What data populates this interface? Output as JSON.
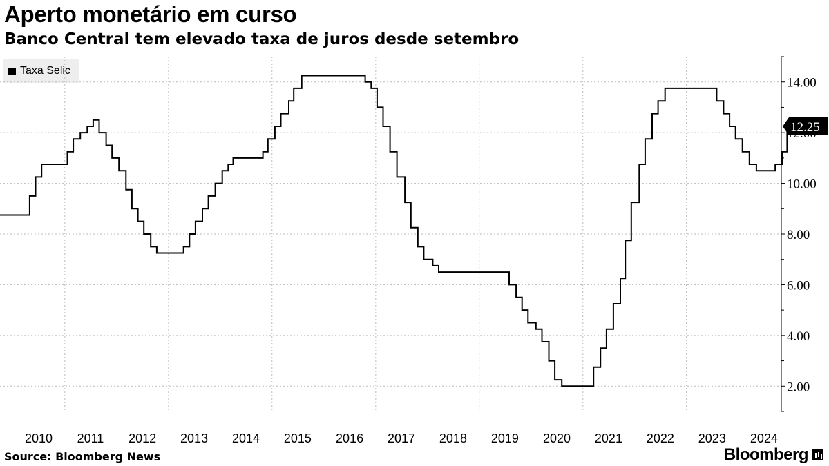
{
  "header": {
    "title": "Aperto monetário em curso",
    "subtitle": "Banco Central tem elevado taxa de juros desde setembro"
  },
  "legend": {
    "label": "Taxa Selic"
  },
  "footer": {
    "source": "Source: Bloomberg News",
    "brand": "Bloomberg"
  },
  "last_value_label": "12.25",
  "colors": {
    "line": "#000000",
    "grid": "#bbbbbb",
    "legend_bg": "#eeeeee",
    "marker_bg": "#000000",
    "marker_text": "#ffffff"
  },
  "chart_data": {
    "type": "line",
    "step": true,
    "title": "Aperto monetário em curso",
    "subtitle": "Banco Central tem elevado taxa de juros desde setembro",
    "xlabel": "",
    "ylabel": "",
    "xlim": [
      "2009-10-01",
      "2024-10-31"
    ],
    "ylim": [
      1,
      15
    ],
    "y_ticks": [
      "2.00",
      "4.00",
      "6.00",
      "8.00",
      "10.00",
      "12.00",
      "14.00"
    ],
    "x_ticks": [
      "2010",
      "2011",
      "2012",
      "2013",
      "2014",
      "2015",
      "2016",
      "2017",
      "2018",
      "2019",
      "2020",
      "2021",
      "2022",
      "2023",
      "2024"
    ],
    "grid": true,
    "legend_position": "top-left",
    "series": [
      {
        "name": "Taxa Selic",
        "points": [
          [
            "2009-10-01",
            8.75
          ],
          [
            "2010-04-28",
            9.5
          ],
          [
            "2010-06-09",
            10.25
          ],
          [
            "2010-07-21",
            10.75
          ],
          [
            "2011-01-19",
            11.25
          ],
          [
            "2011-03-02",
            11.75
          ],
          [
            "2011-04-20",
            12.0
          ],
          [
            "2011-06-08",
            12.25
          ],
          [
            "2011-07-20",
            12.5
          ],
          [
            "2011-08-31",
            12.0
          ],
          [
            "2011-10-19",
            11.5
          ],
          [
            "2011-11-30",
            11.0
          ],
          [
            "2012-01-18",
            10.5
          ],
          [
            "2012-03-07",
            9.75
          ],
          [
            "2012-04-18",
            9.0
          ],
          [
            "2012-05-30",
            8.5
          ],
          [
            "2012-07-11",
            8.0
          ],
          [
            "2012-08-29",
            7.5
          ],
          [
            "2012-10-10",
            7.25
          ],
          [
            "2013-04-17",
            7.5
          ],
          [
            "2013-05-29",
            8.0
          ],
          [
            "2013-07-10",
            8.5
          ],
          [
            "2013-08-28",
            9.0
          ],
          [
            "2013-10-09",
            9.5
          ],
          [
            "2013-11-27",
            10.0
          ],
          [
            "2014-01-15",
            10.5
          ],
          [
            "2014-02-26",
            10.75
          ],
          [
            "2014-04-02",
            11.0
          ],
          [
            "2014-10-29",
            11.25
          ],
          [
            "2014-12-03",
            11.75
          ],
          [
            "2015-01-21",
            12.25
          ],
          [
            "2015-03-04",
            12.75
          ],
          [
            "2015-04-29",
            13.25
          ],
          [
            "2015-06-03",
            13.75
          ],
          [
            "2015-07-29",
            14.25
          ],
          [
            "2016-10-19",
            14.0
          ],
          [
            "2016-11-30",
            13.75
          ],
          [
            "2017-01-11",
            13.0
          ],
          [
            "2017-02-22",
            12.25
          ],
          [
            "2017-04-12",
            11.25
          ],
          [
            "2017-05-31",
            10.25
          ],
          [
            "2017-07-26",
            9.25
          ],
          [
            "2017-09-06",
            8.25
          ],
          [
            "2017-10-25",
            7.5
          ],
          [
            "2017-12-06",
            7.0
          ],
          [
            "2018-02-07",
            6.75
          ],
          [
            "2018-03-21",
            6.5
          ],
          [
            "2019-07-31",
            6.0
          ],
          [
            "2019-09-18",
            5.5
          ],
          [
            "2019-10-30",
            5.0
          ],
          [
            "2019-12-11",
            4.5
          ],
          [
            "2020-02-05",
            4.25
          ],
          [
            "2020-03-18",
            3.75
          ],
          [
            "2020-05-06",
            3.0
          ],
          [
            "2020-06-17",
            2.25
          ],
          [
            "2020-08-05",
            2.0
          ],
          [
            "2021-03-17",
            2.75
          ],
          [
            "2021-05-05",
            3.5
          ],
          [
            "2021-06-16",
            4.25
          ],
          [
            "2021-08-04",
            5.25
          ],
          [
            "2021-09-22",
            6.25
          ],
          [
            "2021-10-27",
            7.75
          ],
          [
            "2021-12-08",
            9.25
          ],
          [
            "2022-02-02",
            10.75
          ],
          [
            "2022-03-16",
            11.75
          ],
          [
            "2022-05-04",
            12.75
          ],
          [
            "2022-06-15",
            13.25
          ],
          [
            "2022-08-03",
            13.75
          ],
          [
            "2023-08-02",
            13.25
          ],
          [
            "2023-09-20",
            12.75
          ],
          [
            "2023-11-01",
            12.25
          ],
          [
            "2023-12-13",
            11.75
          ],
          [
            "2024-01-31",
            11.25
          ],
          [
            "2024-03-20",
            10.75
          ],
          [
            "2024-05-08",
            10.5
          ],
          [
            "2024-09-18",
            10.75
          ],
          [
            "2024-11-06",
            11.25
          ],
          [
            "2024-12-11",
            12.25
          ]
        ]
      }
    ]
  }
}
